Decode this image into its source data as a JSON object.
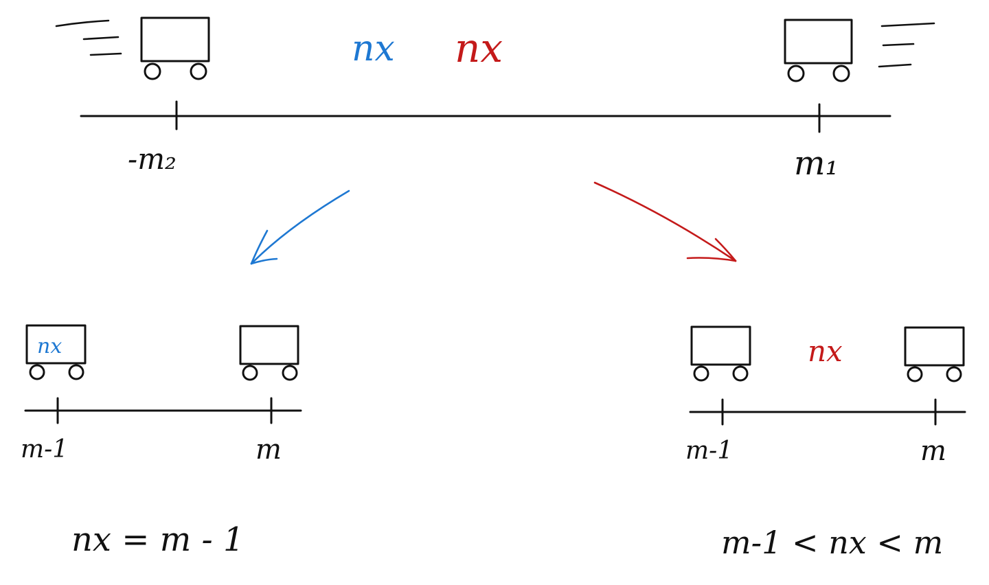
{
  "colors": {
    "ink": "#111111",
    "blue": "#1e78d2",
    "red": "#c41a1a"
  },
  "top": {
    "label_blue": "nx",
    "label_red": "nx",
    "tick_left": "-m₂",
    "tick_right": "m₁"
  },
  "left_panel": {
    "cart_label": "nx",
    "tick_left": "m-1",
    "tick_right": "m",
    "equation": "nx = m - 1"
  },
  "right_panel": {
    "between_label": "nx",
    "tick_left": "m-1",
    "tick_right": "m",
    "equation": "m-1 < nx < m"
  }
}
